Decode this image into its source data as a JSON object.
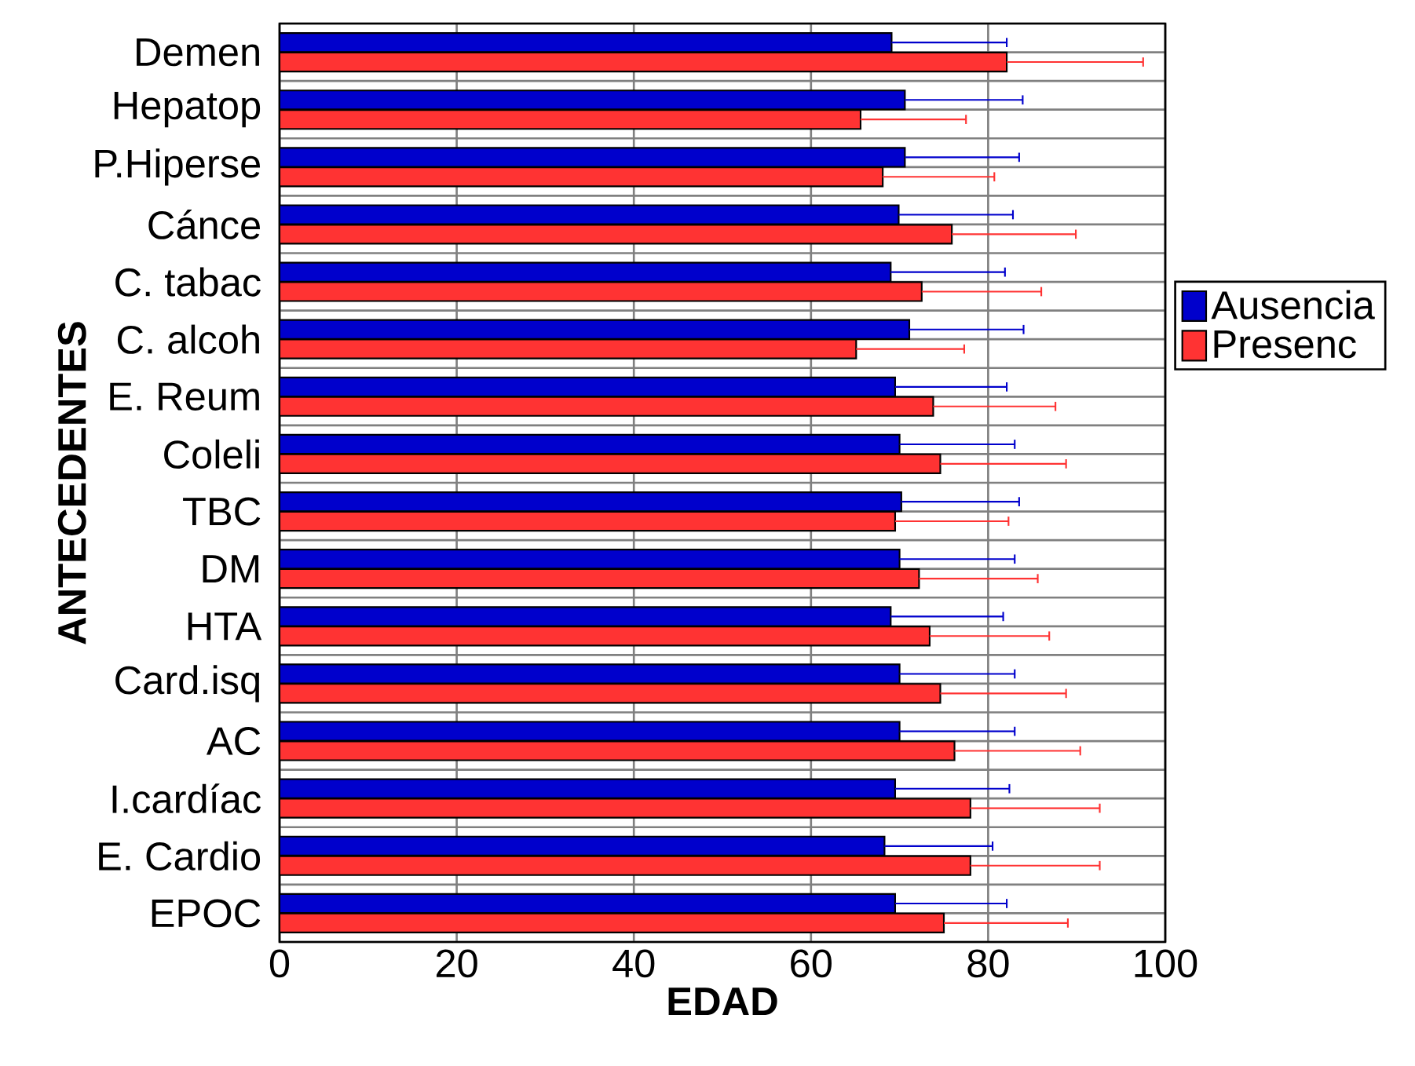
{
  "chart_data": {
    "type": "bar",
    "orientation": "horizontal",
    "xlabel": "EDAD",
    "ylabel": "ANTECEDENTES",
    "categories": [
      "Demen",
      "Hepatop",
      "P.Hiperse",
      "Cánce",
      "C. tabac",
      "C.  alcoh",
      "E. Reum",
      "Coleli",
      "TBC",
      "DM",
      "HTA",
      "Card.isq",
      "AC",
      "I.cardíac",
      "E. Cardio",
      "EPOC"
    ],
    "series": [
      {
        "name": "Ausencia",
        "color": "#0000cc",
        "values": [
          69.1,
          70.6,
          70.6,
          69.9,
          69.0,
          71.1,
          69.5,
          70.0,
          70.2,
          70.0,
          69.0,
          70.0,
          70.0,
          69.5,
          68.3,
          69.5
        ],
        "errors": [
          [
            69.1,
            82.1
          ],
          [
            70.6,
            83.9
          ],
          [
            70.6,
            83.5
          ],
          [
            69.9,
            82.8
          ],
          [
            69.0,
            81.9
          ],
          [
            71.1,
            84.0
          ],
          [
            69.5,
            82.1
          ],
          [
            70.0,
            83.0
          ],
          [
            70.2,
            83.5
          ],
          [
            70.0,
            83.0
          ],
          [
            69.0,
            81.7
          ],
          [
            70.0,
            83.0
          ],
          [
            70.0,
            83.0
          ],
          [
            69.5,
            82.4
          ],
          [
            68.3,
            80.5
          ],
          [
            69.5,
            82.1
          ]
        ]
      },
      {
        "name": "Presenc",
        "color": "#ff3333",
        "values": [
          82.1,
          65.6,
          68.1,
          75.9,
          72.5,
          65.1,
          73.8,
          74.6,
          69.5,
          72.2,
          73.4,
          74.6,
          76.2,
          78.0,
          78.0,
          75.0
        ],
        "errors": [
          [
            82.1,
            97.5
          ],
          [
            65.6,
            77.5
          ],
          [
            68.1,
            80.7
          ],
          [
            75.9,
            89.9
          ],
          [
            72.5,
            86.0
          ],
          [
            65.1,
            77.3
          ],
          [
            73.8,
            87.6
          ],
          [
            74.6,
            88.8
          ],
          [
            69.5,
            82.3
          ],
          [
            72.2,
            85.6
          ],
          [
            73.4,
            86.9
          ],
          [
            74.6,
            88.8
          ],
          [
            76.2,
            90.4
          ],
          [
            78.0,
            92.6
          ],
          [
            78.0,
            92.6
          ],
          [
            75.0,
            89.0
          ]
        ]
      }
    ],
    "xlim": [
      0,
      100
    ],
    "xticks": [
      0,
      20,
      40,
      60,
      80,
      100
    ],
    "grid": true,
    "legend": "right"
  }
}
